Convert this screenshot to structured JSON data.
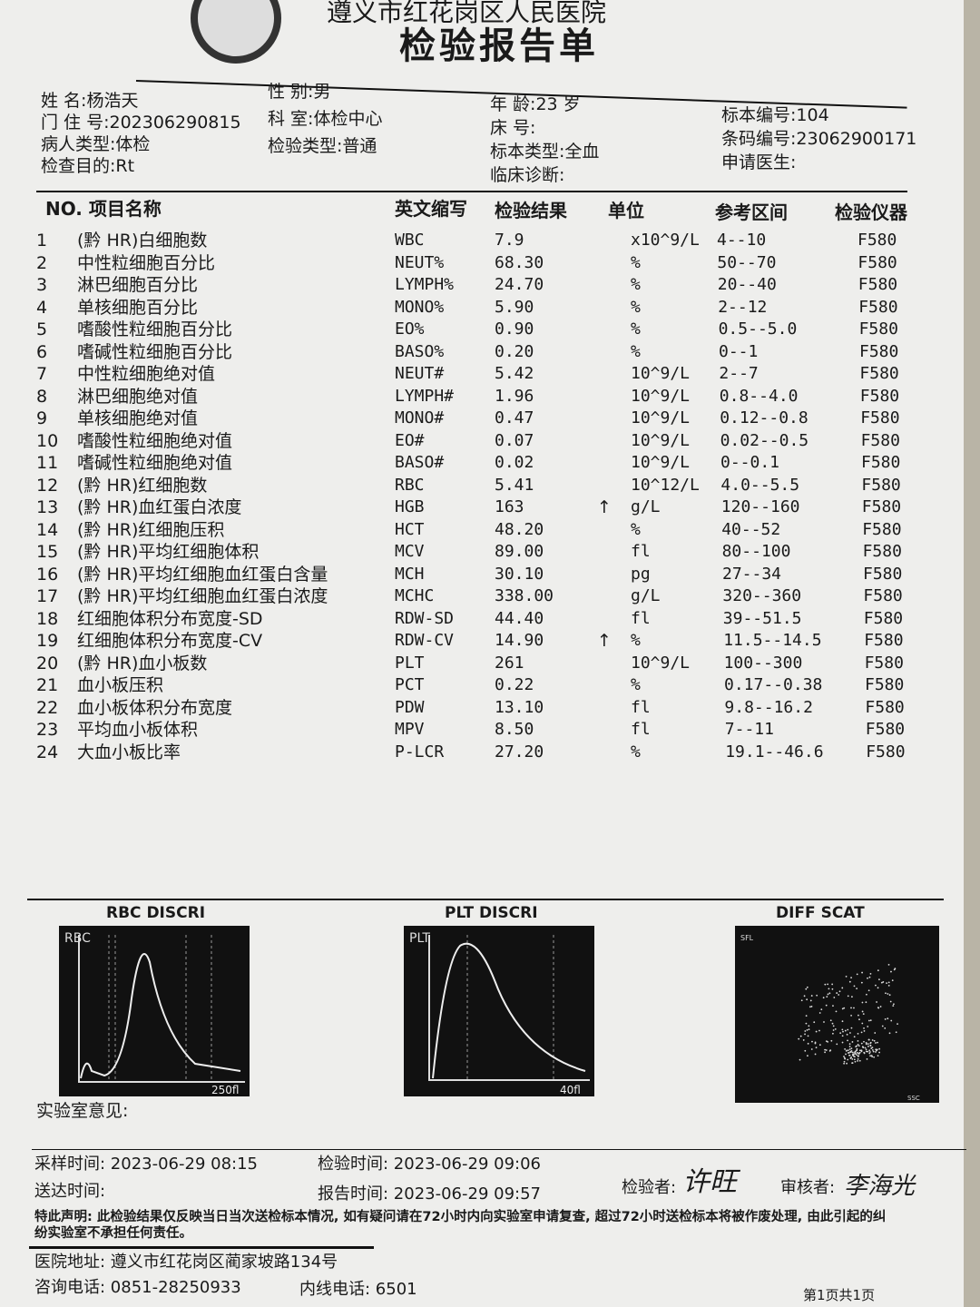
{
  "hospital": "遵义市红花岗区人民医院",
  "report_title": "检验报告单",
  "patient": {
    "name_label": "姓  名:",
    "name": "杨浩天",
    "outpatient_label": "门 住 号:",
    "outpatient_no": "202306290815",
    "patient_type_label": "病人类型:",
    "patient_type": "体检",
    "purpose_label": "检查目的:",
    "purpose": "Rt",
    "sex_label": "性    别:",
    "sex": "男",
    "dept_label": "科    室:",
    "dept": "体检中心",
    "test_type_label": "检验类型:",
    "test_type": "普通",
    "age_label": "年    龄:",
    "age": "23 岁",
    "bed_label": "床    号:",
    "bed": "",
    "specimen_type_label": "标本类型:",
    "specimen_type": "全血",
    "diagnosis_label": "临床诊断:",
    "diagnosis": "",
    "specimen_no_label": "标本编号:",
    "specimen_no": "104",
    "barcode_label": "条码编号:",
    "barcode": "23062900171",
    "doctor_label": "申请医生:",
    "doctor": ""
  },
  "table": {
    "headers": [
      "NO. 项目名称",
      "英文缩写",
      "检验结果",
      "单位",
      "参考区间",
      "检验仪器"
    ],
    "rows": [
      [
        "1",
        "(黔 HR)白细胞数",
        "WBC",
        "7.9",
        "",
        "x10^9/L",
        "4--10",
        "F580"
      ],
      [
        "2",
        "中性粒细胞百分比",
        "NEUT%",
        "68.30",
        "",
        "%",
        "50--70",
        "F580"
      ],
      [
        "3",
        "淋巴细胞百分比",
        "LYMPH%",
        "24.70",
        "",
        "%",
        "20--40",
        "F580"
      ],
      [
        "4",
        "单核细胞百分比",
        "MONO%",
        "5.90",
        "",
        "%",
        "2--12",
        "F580"
      ],
      [
        "5",
        "嗜酸性粒细胞百分比",
        "EO%",
        "0.90",
        "",
        "%",
        "0.5--5.0",
        "F580"
      ],
      [
        "6",
        "嗜碱性粒细胞百分比",
        "BASO%",
        "0.20",
        "",
        "%",
        "0--1",
        "F580"
      ],
      [
        "7",
        "中性粒细胞绝对值",
        "NEUT#",
        "5.42",
        "",
        "10^9/L",
        "2--7",
        "F580"
      ],
      [
        "8",
        "淋巴细胞绝对值",
        "LYMPH#",
        "1.96",
        "",
        "10^9/L",
        "0.8--4.0",
        "F580"
      ],
      [
        "9",
        "单核细胞绝对值",
        "MONO#",
        "0.47",
        "",
        "10^9/L",
        "0.12--0.8",
        "F580"
      ],
      [
        "10",
        "嗜酸性粒细胞绝对值",
        "EO#",
        "0.07",
        "",
        "10^9/L",
        "0.02--0.5",
        "F580"
      ],
      [
        "11",
        "嗜碱性粒细胞绝对值",
        "BASO#",
        "0.02",
        "",
        "10^9/L",
        "0--0.1",
        "F580"
      ],
      [
        "12",
        "(黔 HR)红细胞数",
        "RBC",
        "5.41",
        "",
        "10^12/L",
        "4.0--5.5",
        "F580"
      ],
      [
        "13",
        "(黔 HR)血红蛋白浓度",
        "HGB",
        "163",
        "↑",
        "g/L",
        "120--160",
        "F580"
      ],
      [
        "14",
        "(黔 HR)红细胞压积",
        "HCT",
        "48.20",
        "",
        "%",
        "40--52",
        "F580"
      ],
      [
        "15",
        "(黔 HR)平均红细胞体积",
        "MCV",
        "89.00",
        "",
        "fl",
        "80--100",
        "F580"
      ],
      [
        "16",
        "(黔 HR)平均红细胞血红蛋白含量",
        "MCH",
        "30.10",
        "",
        "pg",
        "27--34",
        "F580"
      ],
      [
        "17",
        "(黔 HR)平均红细胞血红蛋白浓度",
        "MCHC",
        "338.00",
        "",
        "g/L",
        "320--360",
        "F580"
      ],
      [
        "18",
        "红细胞体积分布宽度-SD",
        "RDW-SD",
        "44.40",
        "",
        "fl",
        "39--51.5",
        "F580"
      ],
      [
        "19",
        "红细胞体积分布宽度-CV",
        "RDW-CV",
        "14.90",
        "↑",
        "%",
        "11.5--14.5",
        "F580"
      ],
      [
        "20",
        "(黔 HR)血小板数",
        "PLT",
        "261",
        "",
        "10^9/L",
        "100--300",
        "F580"
      ],
      [
        "21",
        "血小板压积",
        "PCT",
        "0.22",
        "",
        "%",
        "0.17--0.38",
        "F580"
      ],
      [
        "22",
        "血小板体积分布宽度",
        "PDW",
        "13.10",
        "",
        "fl",
        "9.8--16.2",
        "F580"
      ],
      [
        "23",
        "平均血小板体积",
        "MPV",
        "8.50",
        "",
        "fl",
        "7--11",
        "F580"
      ],
      [
        "24",
        "大血小板比率",
        "P-LCR",
        "27.20",
        "",
        "%",
        "19.1--46.6",
        "F580"
      ]
    ]
  },
  "charts": {
    "rbc": {
      "title": "RBC DISCRI",
      "ylabel": "RBC",
      "xmax": "250fl"
    },
    "plt": {
      "title": "PLT DISCRI",
      "ylabel": "PLT",
      "xmax": "40fl"
    },
    "diff": {
      "title": "DIFF SCAT",
      "ylabel": "SFL",
      "xlabel": "SSC"
    }
  },
  "lab_opinion_label": "实验室意见:",
  "footer": {
    "sample_time": "采样时间: 2023-06-29 08:15",
    "test_time": "检验时间: 2023-06-29 09:06",
    "delivery_time": "送达时间:",
    "report_time": "报告时间: 2023-06-29 09:57",
    "tester_label": "检验者:",
    "tester": "许旺",
    "reviewer_label": "审核者:",
    "reviewer": "李海光",
    "disclaimer": "特此声明: 此检验结果仅反映当日当次送检标本情况, 如有疑问请在72小时内向实验室申请复查, 超过72小时送检标本将被作废处理, 由此引起的纠纷实验室不承担任何责任。",
    "address": "医院地址: 遵义市红花岗区蔺家坡路134号",
    "phone": "咨询电话: 0851-28250933",
    "extension": "内线电话: 6501",
    "page": "第1页共1页"
  }
}
